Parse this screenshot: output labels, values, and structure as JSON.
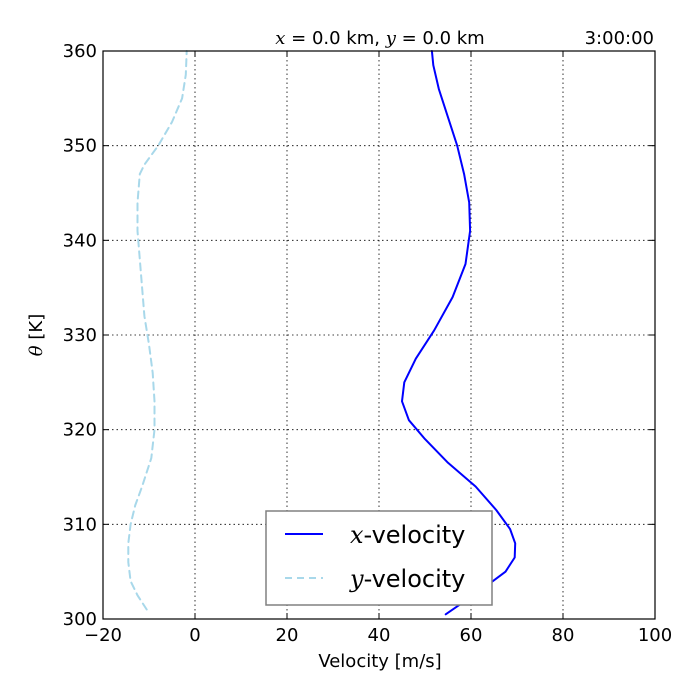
{
  "chart_data": {
    "type": "line",
    "title_left": {
      "prefix_var": "x",
      "prefix_rest": " = 0.0 km, ",
      "var2": "y",
      "rest2": " = 0.0 km"
    },
    "title_right": "3:00:00",
    "xlabel": "Velocity [m/s]",
    "ylabel": {
      "symbol": "θ",
      "unit": " [K]"
    },
    "xlim": [
      -20,
      100
    ],
    "ylim": [
      300,
      360
    ],
    "xticks": [
      -20,
      0,
      20,
      40,
      60,
      80,
      100
    ],
    "yticks": [
      300,
      310,
      320,
      330,
      340,
      350,
      360
    ],
    "grid": true,
    "legend_placement": "lower-center",
    "series": [
      {
        "name_var": "x",
        "name_rest": "-velocity",
        "color": "#0000ff",
        "dash": "solid",
        "x": [
          54.5,
          62,
          67.5,
          69.5,
          69.6,
          68.5,
          65.5,
          61,
          55,
          50,
          46.5,
          45,
          45.5,
          48,
          52,
          56,
          58.8,
          59.8,
          59.6,
          58.5,
          57,
          55,
          53,
          51.8,
          51.5
        ],
        "y": [
          300.5,
          303,
          305,
          306.5,
          308,
          309.5,
          311.5,
          314,
          316.5,
          319,
          321,
          323,
          325,
          327.5,
          330.5,
          334,
          337.5,
          341,
          344,
          347,
          350,
          353,
          356,
          358.5,
          360
        ]
      },
      {
        "name_var": "y",
        "name_rest": "-velocity",
        "color": "#a8d8ea",
        "dash": "dashed",
        "x": [
          -10.5,
          -12.5,
          -14,
          -14.5,
          -14.5,
          -14,
          -13,
          -11.5,
          -9.5,
          -8.8,
          -8.8,
          -9.2,
          -10,
          -11,
          -11.5,
          -12,
          -12.5,
          -12.5,
          -12,
          -11,
          -8,
          -5,
          -2.8,
          -2,
          -1.8
        ],
        "y": [
          301,
          302.5,
          304,
          306,
          308,
          310,
          312,
          314,
          317,
          320,
          323,
          326,
          329,
          332,
          335,
          338,
          341,
          344,
          347,
          348,
          350,
          352.5,
          355,
          357.5,
          360
        ]
      }
    ]
  }
}
